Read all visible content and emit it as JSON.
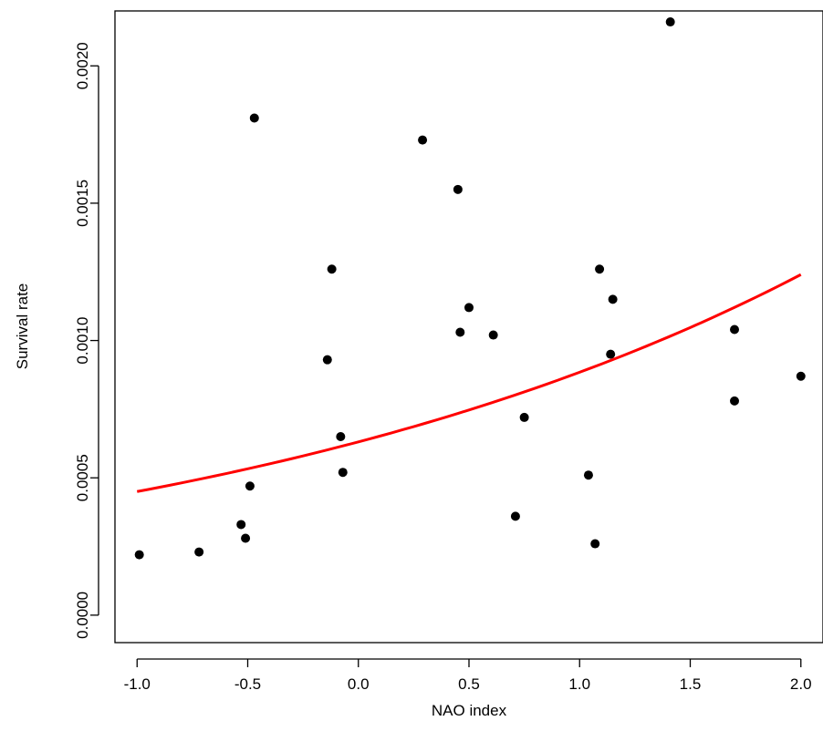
{
  "chart_data": {
    "type": "scatter",
    "title": "",
    "xlabel": "NAO index",
    "ylabel": "Survival rate",
    "xlim": [
      -1.1,
      2.1
    ],
    "ylim": [
      -0.0001,
      0.0022
    ],
    "x_ticks": [
      {
        "value": -1.0,
        "label": "-1.0"
      },
      {
        "value": -0.5,
        "label": "-0.5"
      },
      {
        "value": 0.0,
        "label": "0.0"
      },
      {
        "value": 0.5,
        "label": "0.5"
      },
      {
        "value": 1.0,
        "label": "1.0"
      },
      {
        "value": 1.5,
        "label": "1.5"
      },
      {
        "value": 2.0,
        "label": "2.0"
      }
    ],
    "y_ticks": [
      {
        "value": 0.0,
        "label": "0.0000"
      },
      {
        "value": 0.0005,
        "label": "0.0005"
      },
      {
        "value": 0.001,
        "label": "0.0010"
      },
      {
        "value": 0.0015,
        "label": "0.0015"
      },
      {
        "value": 0.002,
        "label": "0.0020"
      }
    ],
    "grid": false,
    "legend": "none",
    "point_color": "#000000",
    "fit_color": "#ff0000",
    "points": [
      {
        "x": -0.99,
        "y": 0.00022
      },
      {
        "x": -0.72,
        "y": 0.00023
      },
      {
        "x": -0.53,
        "y": 0.00033
      },
      {
        "x": -0.51,
        "y": 0.00028
      },
      {
        "x": -0.49,
        "y": 0.00047
      },
      {
        "x": -0.47,
        "y": 0.00181
      },
      {
        "x": -0.14,
        "y": 0.00093
      },
      {
        "x": -0.12,
        "y": 0.00126
      },
      {
        "x": -0.08,
        "y": 0.00065
      },
      {
        "x": -0.07,
        "y": 0.00052
      },
      {
        "x": 0.29,
        "y": 0.00173
      },
      {
        "x": 0.45,
        "y": 0.00155
      },
      {
        "x": 0.46,
        "y": 0.00103
      },
      {
        "x": 0.5,
        "y": 0.00112
      },
      {
        "x": 0.61,
        "y": 0.00102
      },
      {
        "x": 0.71,
        "y": 0.00036
      },
      {
        "x": 0.75,
        "y": 0.00072
      },
      {
        "x": 1.04,
        "y": 0.00051
      },
      {
        "x": 1.07,
        "y": 0.00026
      },
      {
        "x": 1.09,
        "y": 0.00126
      },
      {
        "x": 1.14,
        "y": 0.00095
      },
      {
        "x": 1.15,
        "y": 0.00115
      },
      {
        "x": 1.41,
        "y": 0.00216
      },
      {
        "x": 1.7,
        "y": 0.00104
      },
      {
        "x": 1.7,
        "y": 0.00078
      },
      {
        "x": 2.0,
        "y": 0.00087
      }
    ],
    "fit_curve": {
      "type": "exponential",
      "x_range": [
        -1.0,
        2.0
      ],
      "y_start": 0.00045,
      "y_end": 0.00124
    }
  }
}
